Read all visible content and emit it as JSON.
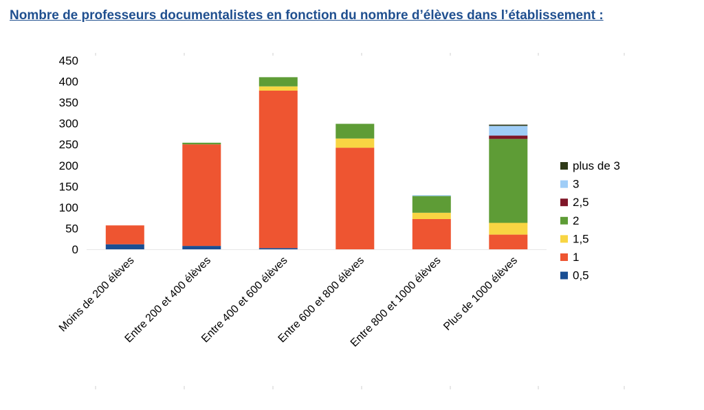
{
  "title": "Nombre de professeurs documentalistes en fonction du nombre d’élèves dans l’établissement :",
  "chart_data": {
    "type": "bar",
    "stacked": true,
    "title": "",
    "xlabel": "",
    "ylabel": "",
    "ylim": [
      0,
      450
    ],
    "yticks": [
      0,
      50,
      100,
      150,
      200,
      250,
      300,
      350,
      400,
      450
    ],
    "grid": false,
    "legend_position": "right",
    "categories": [
      "Moins de 200 élèves",
      "Entre 200 et 400 élèves",
      "Entre 400 et 600 élèves",
      "Entre 600 et 800 élèves",
      "Entre 800 et 1000 élèves",
      "Plus de 1000 élèves"
    ],
    "series": [
      {
        "name": "0,5",
        "color": "#1a4e93",
        "values": [
          12,
          8,
          3,
          0,
          0,
          0
        ]
      },
      {
        "name": "1",
        "color": "#ee5531",
        "values": [
          45,
          242,
          375,
          242,
          72,
          35
        ]
      },
      {
        "name": "1,5",
        "color": "#f8d543",
        "values": [
          0,
          0,
          10,
          22,
          15,
          28
        ]
      },
      {
        "name": "2",
        "color": "#5e9c36",
        "values": [
          0,
          4,
          22,
          35,
          40,
          200
        ]
      },
      {
        "name": "2,5",
        "color": "#7f1628",
        "values": [
          0,
          0,
          0,
          0,
          0,
          8
        ]
      },
      {
        "name": "3",
        "color": "#9fcdf7",
        "values": [
          0,
          0,
          0,
          0,
          2,
          23
        ]
      },
      {
        "name": "plus de 3",
        "color": "#2f3a18",
        "values": [
          0,
          0,
          0,
          0,
          0,
          3
        ]
      }
    ]
  }
}
